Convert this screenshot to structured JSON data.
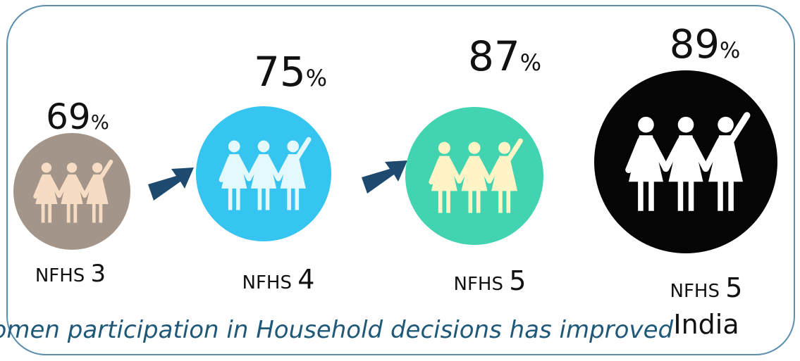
{
  "items": [
    {
      "percent": 69,
      "unit": "%",
      "survey": "NFHS",
      "number": "3"
    },
    {
      "percent": 75,
      "unit": "%",
      "survey": "NFHS",
      "number": "4"
    },
    {
      "percent": 87,
      "unit": "%",
      "survey": "NFHS",
      "number": "5"
    },
    {
      "percent": 89,
      "unit": "%",
      "survey": "NFHS",
      "number": "5",
      "region": "India"
    }
  ],
  "caption": "Women participation in Household decisions has improved"
}
